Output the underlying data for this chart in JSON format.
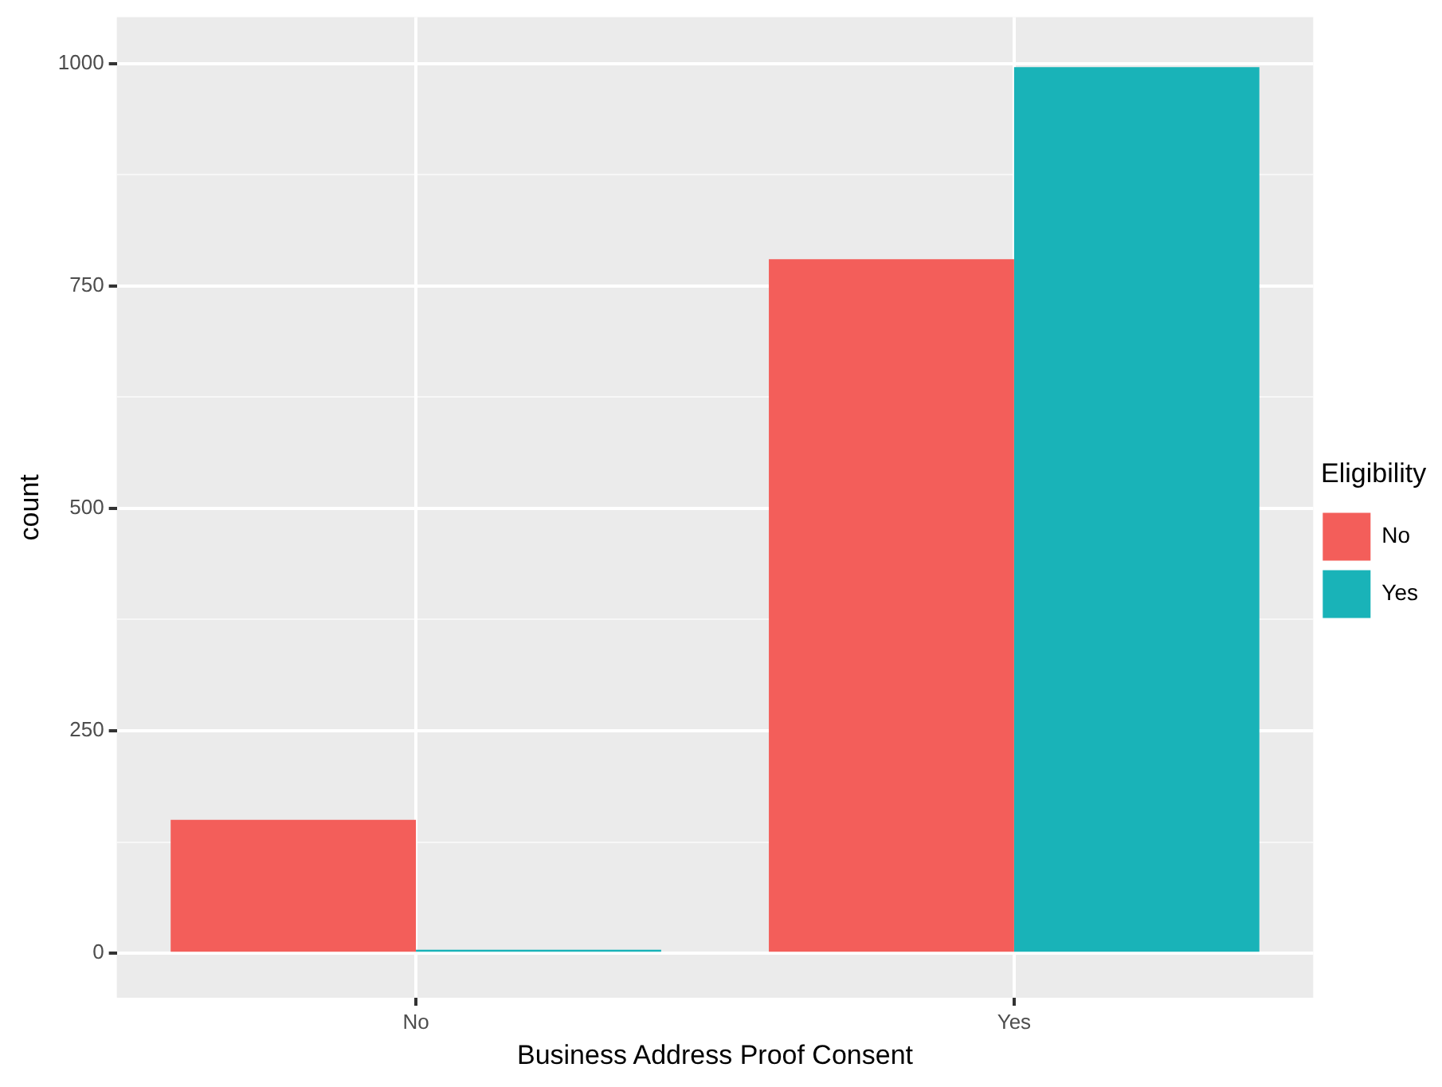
{
  "chart_data": {
    "type": "bar",
    "xlabel": "Business Address Proof Consent",
    "ylabel": "count",
    "legend_title": "Eligibility",
    "categories": [
      "No",
      "Yes"
    ],
    "series": [
      {
        "name": "No",
        "color": "#f35e5a",
        "values": [
          150,
          780
        ]
      },
      {
        "name": "Yes",
        "color": "#19b3b8",
        "values": [
          4,
          996
        ]
      }
    ],
    "ylim": [
      -50,
      1052
    ],
    "yticks": [
      0,
      {
        "value": 125,
        "label": null
      },
      250,
      {
        "value": 375,
        "label": null
      },
      500,
      {
        "value": 625,
        "label": null
      },
      750,
      {
        "value": 875,
        "label": null
      },
      1000
    ],
    "grid": true,
    "legend": "right"
  }
}
